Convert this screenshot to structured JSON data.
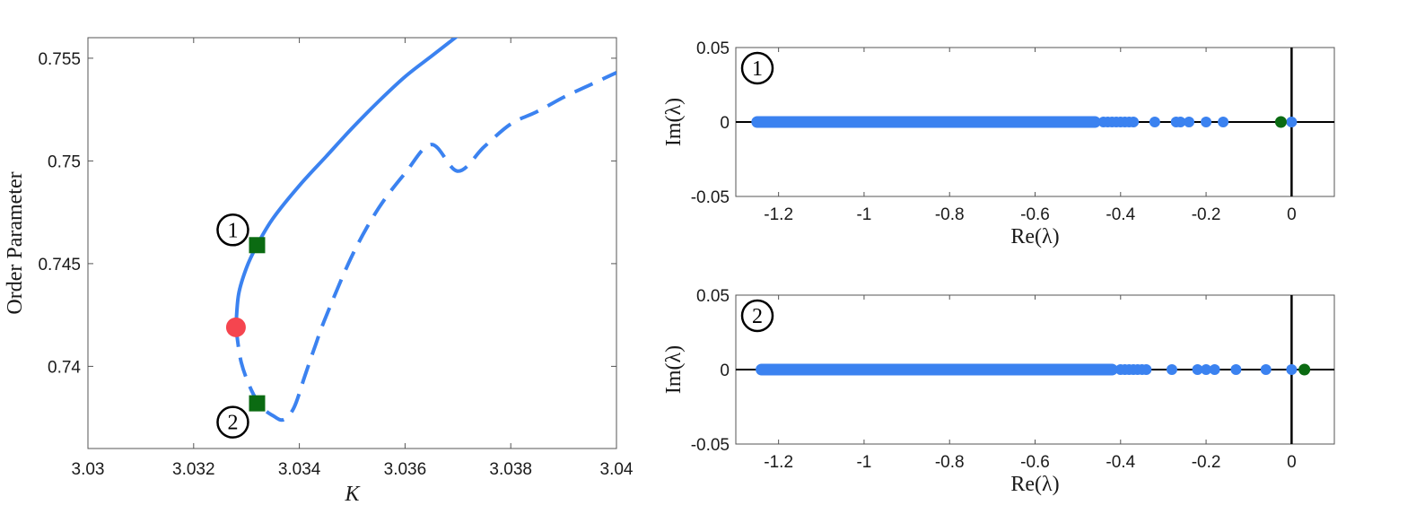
{
  "colors": {
    "curve": "#3b82f0",
    "fold_point": "#f5454f",
    "marker": "#0b6b12",
    "eigen_blue": "#3b82f0",
    "eigen_green": "#0b6b12",
    "frame": "#555555",
    "axis_line": "#000000"
  },
  "chart_data": [
    {
      "type": "line",
      "xlabel": "K",
      "ylabel": "Order Parameter",
      "xlim": [
        3.03,
        3.04
      ],
      "ylim": [
        0.736,
        0.756
      ],
      "x_ticks": [
        3.03,
        3.032,
        3.034,
        3.036,
        3.038,
        3.04
      ],
      "x_tick_labels": [
        "3.03",
        "3.032",
        "3.034",
        "3.036",
        "3.038",
        "3.04"
      ],
      "y_ticks": [
        0.74,
        0.745,
        0.75,
        0.755
      ],
      "y_tick_labels": [
        "0.74",
        "0.745",
        "0.75",
        "0.755"
      ],
      "series": [
        {
          "style": "solid",
          "x": [
            3.0328,
            3.03285,
            3.033,
            3.0332,
            3.0335,
            3.034,
            3.0345,
            3.035,
            3.0355,
            3.036,
            3.0365,
            3.037
          ],
          "y": [
            0.7419,
            0.7435,
            0.7448,
            0.7459,
            0.7472,
            0.7488,
            0.7502,
            0.7516,
            0.7529,
            0.7541,
            0.7551,
            0.7561
          ]
        },
        {
          "style": "dashed",
          "x": [
            3.0328,
            3.0329,
            3.0331,
            3.0333,
            3.0335,
            3.0337,
            3.0339,
            3.0341,
            3.0343,
            3.0345,
            3.035,
            3.0355,
            3.036,
            3.0365,
            3.037,
            3.0375,
            3.038,
            3.0385,
            3.039,
            3.0395,
            3.04
          ],
          "y": [
            0.7419,
            0.7402,
            0.7388,
            0.738,
            0.7376,
            0.7374,
            0.738,
            0.7395,
            0.741,
            0.7424,
            0.7454,
            0.7477,
            0.7494,
            0.7508,
            0.7495,
            0.7507,
            0.7518,
            0.7524,
            0.7531,
            0.7537,
            0.7543
          ]
        }
      ],
      "fold_point": {
        "x": 3.0328,
        "y": 0.7419
      },
      "markers": [
        {
          "label": "1",
          "x": 3.0332,
          "y": 0.7459
        },
        {
          "label": "2",
          "x": 3.0332,
          "y": 0.7382
        }
      ]
    },
    {
      "type": "scatter",
      "badge": "1",
      "xlabel": "Re(λ)",
      "ylabel": "Im(λ)",
      "xlim": [
        -1.3,
        0.1
      ],
      "ylim": [
        -0.05,
        0.05
      ],
      "x_ticks": [
        -1.2,
        -1,
        -0.8,
        -0.6,
        -0.4,
        -0.2,
        0
      ],
      "x_tick_labels": [
        "-1.2",
        "-1",
        "-0.8",
        "-0.6",
        "-0.4",
        "-0.2",
        "0"
      ],
      "y_ticks": [
        -0.05,
        0,
        0.05
      ],
      "y_tick_labels": [
        "-0.05",
        "0",
        "0.05"
      ],
      "dense_band": [
        -1.25,
        -0.46
      ],
      "blue_points": [
        -0.44,
        -0.43,
        -0.42,
        -0.41,
        -0.4,
        -0.39,
        -0.38,
        -0.37,
        -0.32,
        -0.27,
        -0.26,
        -0.24,
        -0.2,
        -0.16,
        0.0
      ],
      "green_points": [
        -0.025
      ]
    },
    {
      "type": "scatter",
      "badge": "2",
      "xlabel": "Re(λ)",
      "ylabel": "Im(λ)",
      "xlim": [
        -1.3,
        0.1
      ],
      "ylim": [
        -0.05,
        0.05
      ],
      "x_ticks": [
        -1.2,
        -1,
        -0.8,
        -0.6,
        -0.4,
        -0.2,
        0
      ],
      "x_tick_labels": [
        "-1.2",
        "-1",
        "-0.8",
        "-0.6",
        "-0.4",
        "-0.2",
        "0"
      ],
      "y_ticks": [
        -0.05,
        0,
        0.05
      ],
      "y_tick_labels": [
        "-0.05",
        "0",
        "0.05"
      ],
      "dense_band": [
        -1.24,
        -0.42
      ],
      "blue_points": [
        -0.4,
        -0.39,
        -0.38,
        -0.37,
        -0.36,
        -0.35,
        -0.34,
        -0.28,
        -0.22,
        -0.2,
        -0.18,
        -0.13,
        -0.06,
        0.0
      ],
      "green_points": [
        0.03
      ]
    }
  ]
}
